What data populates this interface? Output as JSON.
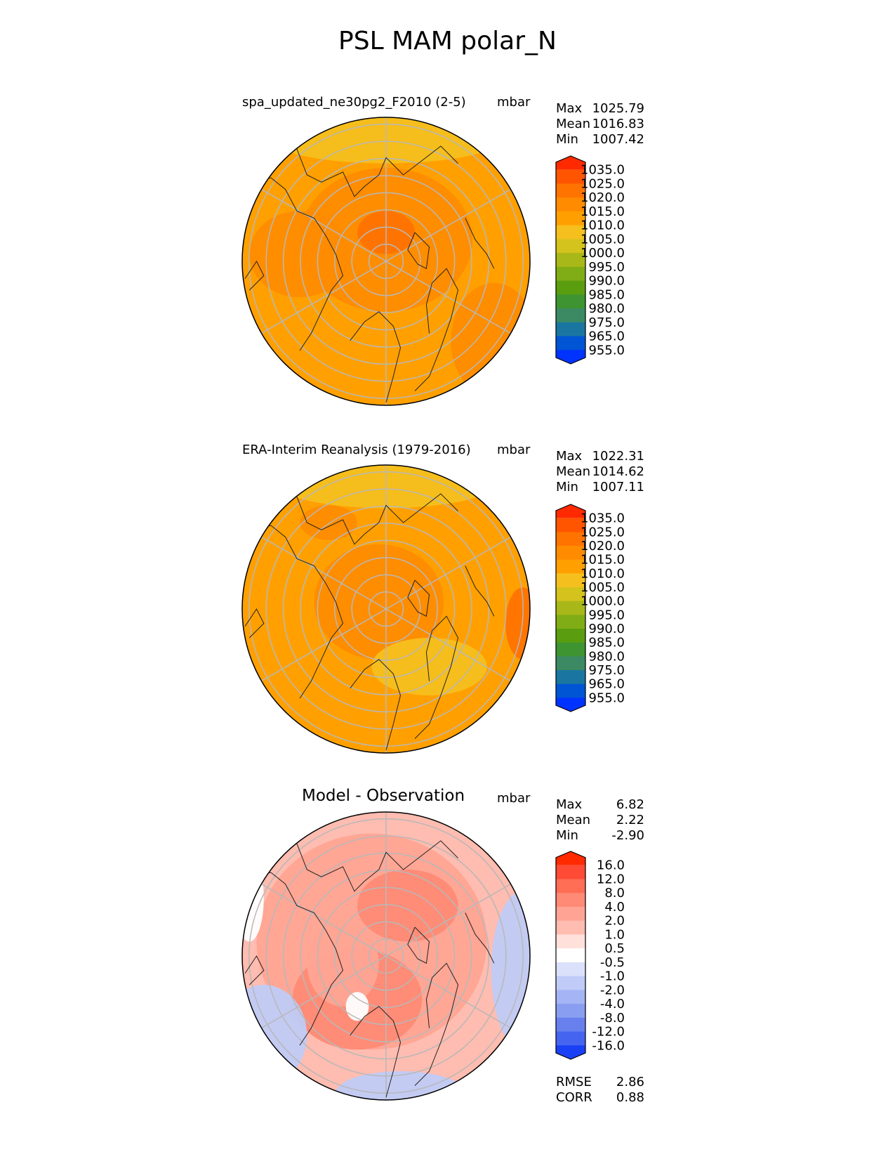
{
  "title": "PSL MAM polar_N",
  "chart_data": [
    {
      "type": "heatmap",
      "projection": "north polar stereographic",
      "label": "spa_updated_ne30pg2_F2010 (2-5)",
      "units": "mbar",
      "stats": [
        {
          "key": "Max",
          "value": "1025.79"
        },
        {
          "key": "Mean",
          "value": "1016.83"
        },
        {
          "key": "Min",
          "value": "1007.42"
        }
      ],
      "colorbar": {
        "levels": [
          "1035.0",
          "1025.0",
          "1020.0",
          "1015.0",
          "1010.0",
          "1005.0",
          "1000.0",
          "995.0",
          "990.0",
          "985.0",
          "980.0",
          "975.0",
          "965.0",
          "955.0"
        ],
        "colors": [
          "#ff2a00",
          "#ff5500",
          "#ff7300",
          "#ff8c00",
          "#ffa000",
          "#f5c01e",
          "#d4c21d",
          "#a8b818",
          "#80ad15",
          "#5a9e10",
          "#3d9431",
          "#3b8a63",
          "#1a76a0",
          "#0055d4",
          "#0033ff"
        ],
        "extend": "both"
      },
      "field_colors": [
        "#ffa000",
        "#ff8c00",
        "#ff7300",
        "#f5c01e"
      ]
    },
    {
      "type": "heatmap",
      "projection": "north polar stereographic",
      "label": "ERA-Interim Reanalysis (1979-2016)",
      "units": "mbar",
      "stats": [
        {
          "key": "Max",
          "value": "1022.31"
        },
        {
          "key": "Mean",
          "value": "1014.62"
        },
        {
          "key": "Min",
          "value": "1007.11"
        }
      ],
      "colorbar": {
        "levels": [
          "1035.0",
          "1025.0",
          "1020.0",
          "1015.0",
          "1010.0",
          "1005.0",
          "1000.0",
          "995.0",
          "990.0",
          "985.0",
          "980.0",
          "975.0",
          "965.0",
          "955.0"
        ],
        "colors": [
          "#ff2a00",
          "#ff5500",
          "#ff7300",
          "#ff8c00",
          "#ffa000",
          "#f5c01e",
          "#d4c21d",
          "#a8b818",
          "#80ad15",
          "#5a9e10",
          "#3d9431",
          "#3b8a63",
          "#1a76a0",
          "#0055d4",
          "#0033ff"
        ],
        "extend": "both"
      },
      "field_colors": [
        "#ffa000",
        "#ff8c00",
        "#f5c01e",
        "#ff7300"
      ]
    },
    {
      "type": "heatmap",
      "projection": "north polar stereographic",
      "label": "Model - Observation",
      "units": "mbar",
      "stats": [
        {
          "key": "Max",
          "value": "6.82"
        },
        {
          "key": "Mean",
          "value": "2.22"
        },
        {
          "key": "Min",
          "value": "-2.90"
        }
      ],
      "colorbar": {
        "levels": [
          "16.0",
          "12.0",
          "8.0",
          "4.0",
          "2.0",
          "1.0",
          "0.5",
          "-0.5",
          "-1.0",
          "-2.0",
          "-4.0",
          "-8.0",
          "-12.0",
          "-16.0"
        ],
        "colors": [
          "#ff2a00",
          "#ff4a35",
          "#ff6d55",
          "#ff8a75",
          "#ffa494",
          "#ffbcb0",
          "#ffe0da",
          "#ffffff",
          "#dbe1fa",
          "#c0cbf7",
          "#a5b4f4",
          "#8a9ef1",
          "#6780ee",
          "#4565f0",
          "#1a40f5"
        ],
        "extend": "both"
      },
      "field_colors": [
        "#ffbcb0",
        "#ffa494",
        "#ff8a75",
        "#ffffff",
        "#c0cbf7",
        "#8a9ef1"
      ],
      "footer": [
        {
          "key": "RMSE",
          "value": "2.86"
        },
        {
          "key": "CORR",
          "value": "0.88"
        }
      ]
    }
  ]
}
